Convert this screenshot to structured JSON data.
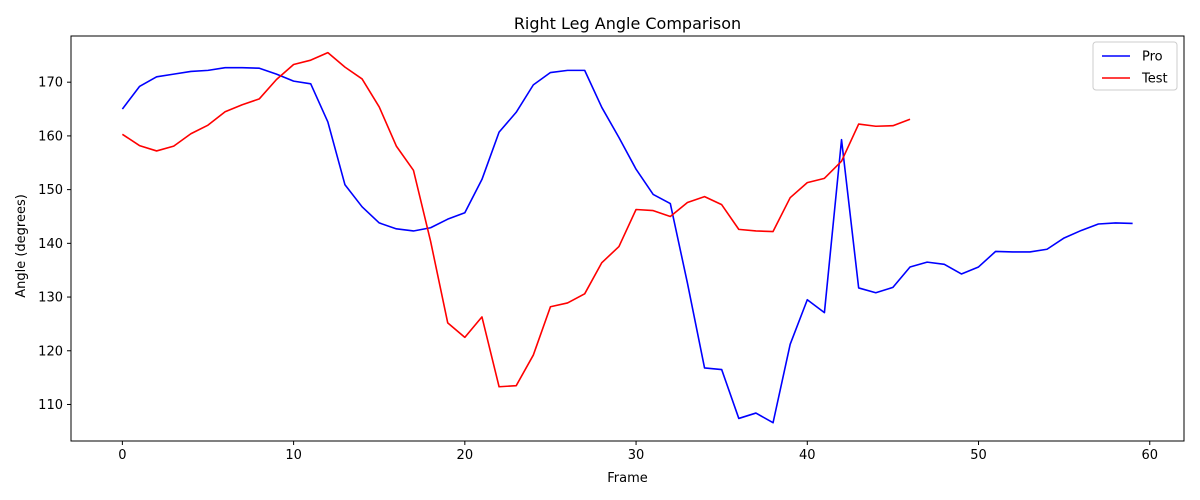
{
  "chart_data": {
    "type": "line",
    "title": "Right Leg Angle Comparison",
    "xlabel": "Frame",
    "ylabel": "Angle (degrees)",
    "xlim": [
      -3,
      62
    ],
    "ylim": [
      103.2,
      178.6
    ],
    "xticks": [
      0,
      10,
      20,
      30,
      40,
      50,
      60
    ],
    "yticks": [
      110,
      120,
      130,
      140,
      150,
      160,
      170
    ],
    "grid": false,
    "legend_position": "top-right",
    "series": [
      {
        "name": "Pro",
        "color": "#0000ff",
        "x": [
          0,
          1,
          2,
          3,
          4,
          5,
          6,
          7,
          8,
          9,
          10,
          11,
          12,
          13,
          14,
          15,
          16,
          17,
          18,
          19,
          20,
          21,
          22,
          23,
          24,
          25,
          26,
          27,
          28,
          29,
          30,
          31,
          32,
          33,
          34,
          35,
          36,
          37,
          38,
          39,
          40,
          41,
          42,
          43,
          44,
          45,
          46,
          47,
          48,
          49,
          50,
          51,
          52,
          53,
          54,
          55,
          56,
          57,
          58,
          59
        ],
        "values": [
          165.0,
          169.2,
          171.0,
          171.5,
          172.0,
          172.2,
          172.7,
          172.7,
          172.6,
          171.5,
          170.2,
          169.7,
          162.6,
          150.9,
          146.8,
          143.8,
          142.7,
          142.3,
          142.9,
          144.5,
          145.7,
          151.9,
          160.7,
          164.4,
          169.5,
          171.8,
          172.2,
          172.2,
          165.3,
          159.7,
          153.8,
          149.1,
          147.4,
          132.6,
          116.8,
          116.5,
          107.4,
          108.4,
          106.6,
          121.2,
          129.5,
          127.1,
          159.3,
          131.7,
          130.8,
          131.8,
          135.6,
          136.5,
          136.1,
          134.3,
          135.6,
          138.5,
          138.4,
          138.4,
          138.9,
          141.0,
          142.4,
          143.6,
          143.8,
          143.7
        ]
      },
      {
        "name": "Test",
        "color": "#ff0000",
        "x": [
          0,
          1,
          2,
          3,
          4,
          5,
          6,
          7,
          8,
          9,
          10,
          11,
          12,
          13,
          14,
          15,
          16,
          17,
          18,
          19,
          20,
          21,
          22,
          23,
          24,
          25,
          26,
          27,
          28,
          29,
          30,
          31,
          32,
          33,
          34,
          35,
          36,
          37,
          38,
          39,
          40,
          41,
          42,
          43,
          44,
          45,
          46
        ],
        "values": [
          160.3,
          158.2,
          157.2,
          158.1,
          160.4,
          162.0,
          164.5,
          165.8,
          166.9,
          170.5,
          173.3,
          174.1,
          175.5,
          172.8,
          170.6,
          165.4,
          158.1,
          153.6,
          140.4,
          125.2,
          122.5,
          126.3,
          113.3,
          113.5,
          119.2,
          128.2,
          128.9,
          130.6,
          136.4,
          139.4,
          146.3,
          146.1,
          145.0,
          147.6,
          148.7,
          147.2,
          142.6,
          142.3,
          142.2,
          148.5,
          151.3,
          152.1,
          155.3,
          162.2,
          161.8,
          161.9,
          163.1
        ]
      }
    ]
  }
}
